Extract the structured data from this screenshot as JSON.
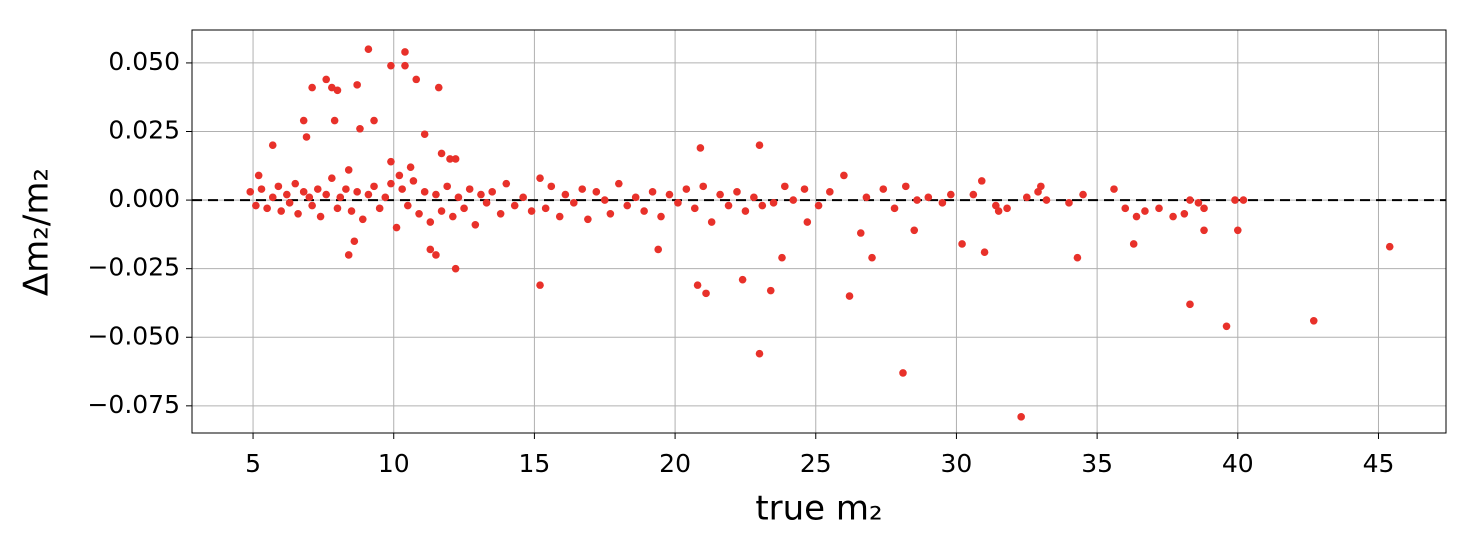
{
  "chart_data": {
    "type": "scatter",
    "xlabel": "true m₂",
    "ylabel": "Δm₂/m₂",
    "color": "#e8312a",
    "grid": true,
    "reference_line": {
      "y": 0,
      "color": "#000000",
      "dashed": true
    },
    "xlim": [
      2.83,
      47.4
    ],
    "ylim": [
      -0.0849,
      0.062
    ],
    "xticks": [
      5,
      10,
      15,
      20,
      25,
      30,
      35,
      40,
      45
    ],
    "yticks": [
      {
        "value": 0.05,
        "label": "0.050"
      },
      {
        "value": 0.025,
        "label": "0.025"
      },
      {
        "value": 0,
        "label": "0.000"
      },
      {
        "value": -0.025,
        "label": "−0.025"
      },
      {
        "value": -0.05,
        "label": "−0.050"
      },
      {
        "value": -0.075,
        "label": "−0.075"
      }
    ],
    "x": [
      4.9,
      5.1,
      5.3,
      5.5,
      5.7,
      5.9,
      6.0,
      6.2,
      6.3,
      6.5,
      6.6,
      6.8,
      7.0,
      7.1,
      7.3,
      7.4,
      7.6,
      7.8,
      8.0,
      8.1,
      8.3,
      8.5,
      8.7,
      8.9,
      9.1,
      9.3,
      9.5,
      9.7,
      9.9,
      10.1,
      10.3,
      10.5,
      10.7,
      10.9,
      11.1,
      11.3,
      11.5,
      11.7,
      11.9,
      12.1,
      12.3,
      12.5,
      12.7,
      12.9,
      13.1,
      13.3,
      13.5,
      13.8,
      14.0,
      14.3,
      14.6,
      14.9,
      15.2,
      15.4,
      15.6,
      15.9,
      16.1,
      16.4,
      16.7,
      16.9,
      17.2,
      17.5,
      17.7,
      18.0,
      18.3,
      18.6,
      18.9,
      19.2,
      19.5,
      19.8,
      20.1,
      20.4,
      20.7,
      21.0,
      21.3,
      21.6,
      21.9,
      22.2,
      22.5,
      22.8,
      23.1,
      9.1,
      10.4,
      10.4,
      9.9,
      10.8,
      11.6,
      7.6,
      7.1,
      7.8,
      8.0,
      8.7,
      6.8,
      7.9,
      9.3,
      8.8,
      6.9,
      11.1,
      5.7,
      20.9,
      23.0,
      11.7,
      12.0,
      12.2,
      9.9,
      10.6,
      10.2,
      8.4,
      5.2,
      8.4,
      8.6,
      11.3,
      11.5,
      12.2,
      15.2,
      20.8,
      21.1,
      22.4,
      23.4,
      23.0,
      26.2,
      28.1,
      32.3,
      19.4,
      23.8,
      27.0,
      30.2,
      31.0,
      28.5,
      34.3,
      36.3,
      38.3,
      39.6,
      42.7,
      45.4,
      40.0,
      38.8,
      26.6,
      24.7,
      33.0,
      34.5,
      35.6,
      36.0,
      36.4,
      36.7,
      37.2,
      37.7,
      38.1,
      38.3,
      38.6,
      38.8,
      39.9,
      40.2,
      34.0,
      33.2,
      32.5,
      31.8,
      31.4,
      30.9,
      30.6,
      29.8,
      29.5,
      29.0,
      28.6,
      28.2,
      27.8,
      27.4,
      26.8,
      26.0,
      25.5,
      25.1,
      24.6,
      24.2,
      23.9,
      23.5,
      32.9,
      31.5
    ],
    "values": [
      0.003,
      -0.002,
      0.004,
      -0.003,
      0.001,
      0.005,
      -0.004,
      0.002,
      -0.001,
      0.006,
      -0.005,
      0.003,
      0.001,
      -0.002,
      0.004,
      -0.006,
      0.002,
      0.008,
      -0.003,
      0.001,
      0.004,
      -0.004,
      0.003,
      -0.007,
      0.002,
      0.005,
      -0.003,
      0.001,
      0.006,
      -0.01,
      0.004,
      -0.002,
      0.007,
      -0.005,
      0.003,
      -0.008,
      0.002,
      -0.004,
      0.005,
      -0.006,
      0.001,
      -0.003,
      0.004,
      -0.009,
      0.002,
      -0.001,
      0.003,
      -0.005,
      0.006,
      -0.002,
      0.001,
      -0.004,
      0.008,
      -0.003,
      0.005,
      -0.006,
      0.002,
      -0.001,
      0.004,
      -0.007,
      0.003,
      0,
      -0.005,
      0.006,
      -0.002,
      0.001,
      -0.004,
      0.003,
      -0.006,
      0.002,
      -0.001,
      0.004,
      -0.003,
      0.005,
      -0.008,
      0.002,
      -0.002,
      0.003,
      -0.004,
      0.001,
      -0.002,
      0.055,
      0.054,
      0.049,
      0.049,
      0.044,
      0.041,
      0.044,
      0.041,
      0.041,
      0.04,
      0.042,
      0.029,
      0.029,
      0.029,
      0.026,
      0.023,
      0.024,
      0.02,
      0.019,
      0.02,
      0.017,
      0.015,
      0.015,
      0.014,
      0.012,
      0.009,
      0.011,
      0.009,
      -0.02,
      -0.015,
      -0.018,
      -0.02,
      -0.025,
      -0.031,
      -0.031,
      -0.034,
      -0.029,
      -0.033,
      -0.056,
      -0.035,
      -0.063,
      -0.079,
      -0.018,
      -0.021,
      -0.021,
      -0.016,
      -0.019,
      -0.011,
      -0.021,
      -0.016,
      -0.038,
      -0.046,
      -0.044,
      -0.017,
      -0.011,
      -0.011,
      -0.012,
      -0.008,
      0.005,
      0.002,
      0.004,
      -0.003,
      -0.006,
      -0.004,
      -0.003,
      -0.006,
      -0.005,
      0,
      -0.001,
      -0.003,
      0,
      0,
      -0.001,
      0,
      0.001,
      -0.003,
      -0.002,
      0.007,
      0.002,
      0.002,
      -0.001,
      0.001,
      0,
      0.005,
      -0.003,
      0.004,
      0.001,
      0.009,
      0.003,
      -0.002,
      0.004,
      0,
      0.005,
      -0.001,
      0.003,
      -0.004
    ]
  }
}
